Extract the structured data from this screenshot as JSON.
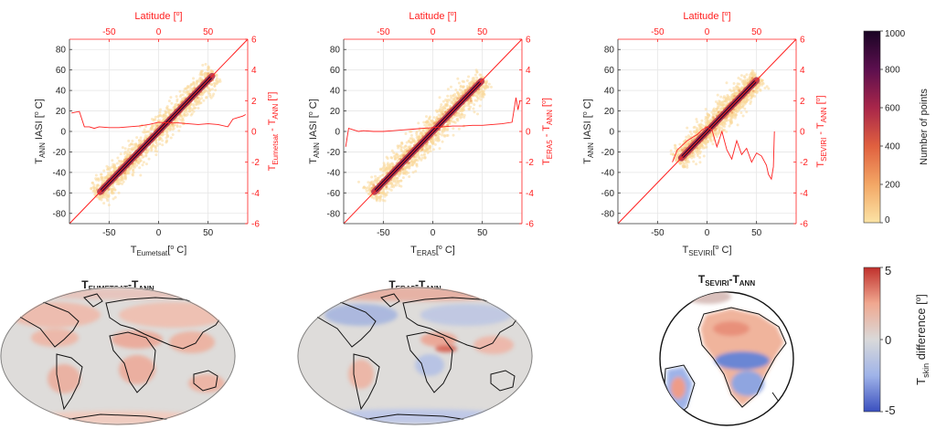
{
  "chart_data": [
    {
      "type": "scatter",
      "panel": "eumetsat-density",
      "x_label_main": "T",
      "x_label_sub": "Eumetsat",
      "x_label_unit": "[",
      "x_label_deg": "o",
      "x_label_end": " C]",
      "y_label": [
        "T",
        "ANN",
        " IASI [",
        "o",
        " C]"
      ],
      "right_label": [
        "T",
        "Eumetsat",
        " - T",
        "ANN",
        " [",
        "o",
        "]"
      ],
      "top_label": [
        "Latitude [",
        "o",
        "]"
      ],
      "xlim": [
        -90,
        90
      ],
      "ylim": [
        -90,
        90
      ],
      "x_ticks": [
        "-50",
        "0",
        "50"
      ],
      "y_ticks": [
        "80",
        "60",
        "40",
        "20",
        "0",
        "-20",
        "-40",
        "-60",
        "-80"
      ],
      "top_ticks": [
        "-50",
        "0",
        "50"
      ],
      "right_ticks": [
        "6",
        "4",
        "2",
        "0",
        "-2",
        "-4",
        "-6"
      ],
      "right_ylim": [
        -6,
        6
      ],
      "density_x_range": [
        -63,
        57
      ],
      "density_spread": 6,
      "diff_lat": [
        -88,
        -80,
        -75,
        -70,
        -65,
        -60,
        -50,
        -40,
        -30,
        -20,
        -10,
        0,
        10,
        20,
        30,
        40,
        50,
        60,
        70,
        75,
        80,
        85,
        88
      ],
      "diff_val": [
        1.2,
        1.3,
        0.3,
        0.3,
        0.2,
        0.3,
        0.25,
        0.25,
        0.3,
        0.35,
        0.45,
        0.6,
        0.55,
        0.55,
        0.5,
        0.45,
        0.5,
        0.45,
        0.3,
        0.8,
        0.9,
        1.0,
        1.1
      ]
    },
    {
      "type": "scatter",
      "panel": "era5-density",
      "x_label_main": "T",
      "x_label_sub": "ERA5",
      "x_label_unit": "[",
      "x_label_deg": "o",
      "x_label_end": " C]",
      "y_label": [
        "T",
        "ANN",
        " IASI [",
        "o",
        " C]"
      ],
      "right_label": [
        "T",
        "ERA5",
        " - T",
        "ANN",
        " [",
        "o",
        "]"
      ],
      "top_label": [
        "Latitude [",
        "o",
        "]"
      ],
      "xlim": [
        -90,
        90
      ],
      "ylim": [
        -90,
        90
      ],
      "x_ticks": [
        "-50",
        "0",
        "50"
      ],
      "y_ticks": [
        "80",
        "60",
        "40",
        "20",
        "0",
        "-20",
        "-40",
        "-60",
        "-80"
      ],
      "top_ticks": [
        "-50",
        "0",
        "50"
      ],
      "right_ticks": [
        "6",
        "4",
        "2",
        "0",
        "-2",
        "-4",
        "-6"
      ],
      "right_ylim": [
        -6,
        6
      ],
      "density_x_range": [
        -63,
        52
      ],
      "density_spread": 7,
      "diff_lat": [
        -88,
        -85,
        -80,
        -75,
        -70,
        -60,
        -50,
        -40,
        -30,
        -20,
        -10,
        0,
        10,
        20,
        30,
        40,
        50,
        60,
        70,
        80,
        84,
        86,
        88
      ],
      "diff_val": [
        -1.0,
        0.2,
        0.1,
        0.0,
        0.05,
        0.0,
        0.0,
        0.05,
        0.1,
        0.15,
        0.2,
        0.25,
        0.3,
        0.35,
        0.35,
        0.4,
        0.4,
        0.45,
        0.5,
        0.6,
        2.2,
        1.4,
        2.0
      ]
    },
    {
      "type": "scatter",
      "panel": "seviri-density",
      "x_label_main": "T",
      "x_label_sub": "SEVIRI",
      "x_label_unit": "[",
      "x_label_deg": "o",
      "x_label_end": " C]",
      "y_label": [
        "T",
        "ANN",
        " IASI [",
        "o",
        " C]"
      ],
      "right_label": [
        "T",
        "SEVIRI",
        " - T",
        "ANN",
        " [",
        "o",
        "]"
      ],
      "top_label": [
        "Latitude [",
        "o",
        "]"
      ],
      "xlim": [
        -90,
        90
      ],
      "ylim": [
        -90,
        90
      ],
      "x_ticks": [
        "-50",
        "0",
        "50"
      ],
      "y_ticks": [
        "80",
        "60",
        "40",
        "20",
        "0",
        "-20",
        "-40",
        "-60",
        "-80"
      ],
      "top_ticks": [
        "-50",
        "0",
        "50"
      ],
      "right_ticks": [
        "6",
        "4",
        "2",
        "0",
        "-2",
        "-4",
        "-6"
      ],
      "right_ylim": [
        -6,
        6
      ],
      "density_x_range": [
        -30,
        53
      ],
      "density_spread": 6,
      "diff_lat": [
        -35,
        -30,
        -25,
        -20,
        -15,
        -10,
        -5,
        0,
        5,
        10,
        15,
        20,
        25,
        30,
        35,
        40,
        45,
        50,
        55,
        60,
        62,
        65,
        67,
        68
      ],
      "diff_val": [
        -2.0,
        -1.2,
        -0.9,
        -0.6,
        -0.4,
        -0.2,
        0.1,
        0.3,
        0.1,
        -1.0,
        0.0,
        -1.2,
        -1.8,
        -0.6,
        -1.5,
        -1.1,
        -2.0,
        -1.4,
        -1.6,
        -2.2,
        -2.8,
        -3.1,
        -2.3,
        0.0
      ]
    }
  ],
  "maps": [
    {
      "title_main": "T",
      "title_sub1": "EUMETSAT",
      "title_mid": "-T",
      "title_sub2": "ANN",
      "shape": "global"
    },
    {
      "title_main": "T",
      "title_sub1": "ERA5",
      "title_mid": "-T",
      "title_sub2": "ANN",
      "shape": "global"
    },
    {
      "title_main": "T",
      "title_sub1": "SEVIRI",
      "title_mid": "-T",
      "title_sub2": "ANN",
      "shape": "disk"
    }
  ],
  "colorbar_density": {
    "ticks": [
      "1000",
      "800",
      "600",
      "400",
      "200",
      "0"
    ],
    "label": "Number of points",
    "range": [
      0,
      1000
    ],
    "colors": [
      "#fbe3a5",
      "#f3a765",
      "#e0603f",
      "#a8264a",
      "#5c0f4e",
      "#1a0424"
    ]
  },
  "colorbar_diff": {
    "ticks": [
      "5",
      "0",
      "-5"
    ],
    "label": [
      "T",
      "skin",
      " difference [",
      "o",
      "]"
    ],
    "range": [
      -5,
      5
    ],
    "colors": [
      "#3a4fbf",
      "#9fb3e8",
      "#d9d9d9",
      "#f0a890",
      "#c0302c"
    ]
  },
  "colors": {
    "accent_red": "#ff2020",
    "axis_text": "#262626",
    "grid": "#e6e6e6"
  }
}
